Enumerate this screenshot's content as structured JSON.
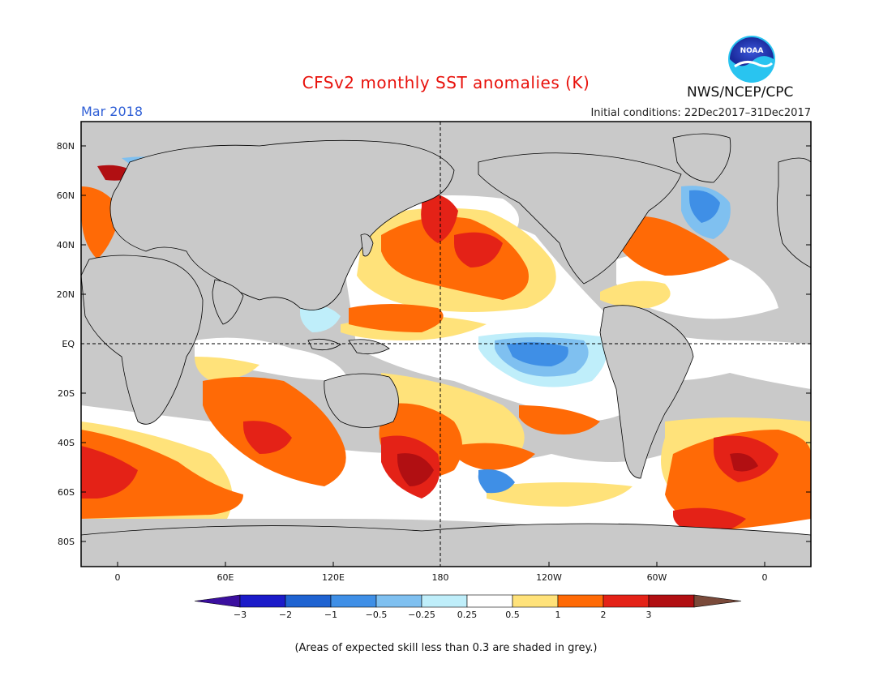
{
  "header": {
    "title": "CFSv2 monthly SST anomalies (K)",
    "month": "Mar 2018",
    "initial_conditions": "Initial conditions: 22Dec2017–31Dec2017",
    "agency": "NWS/NCEP/CPC",
    "logo_text": "NOAA"
  },
  "axes": {
    "lat_labels": [
      "80N",
      "60N",
      "40N",
      "20N",
      "EQ",
      "20S",
      "40S",
      "60S",
      "80S"
    ],
    "lon_labels": [
      "0",
      "60E",
      "120E",
      "180",
      "120W",
      "60W",
      "0"
    ]
  },
  "colorbar": {
    "labels": [
      "−3",
      "−2",
      "−1",
      "−0.5",
      "−0.25",
      "0.25",
      "0.5",
      "1",
      "2",
      "3"
    ],
    "colors": [
      "#1b1bc9",
      "#1f63d1",
      "#3f8fe6",
      "#7fc0f0",
      "#bfeefa",
      "#ffffff",
      "#ffe27a",
      "#ff6a06",
      "#e42217",
      "#b10f12"
    ],
    "under_color": "#3b0f9f",
    "over_color": "#7a4a3a"
  },
  "legend": {
    "note": "(Areas of expected skill less than 0.3 are shaded in grey.)"
  },
  "map": {
    "land_color": "#c9c9c9",
    "ocean_colors": {
      "grey": "#c9c9c9",
      "white": "#ffffff",
      "light_yellow": "#ffe27a",
      "orange": "#ff6a06",
      "red": "#e42217",
      "dark_red": "#b10f12",
      "light_blue": "#bfeefa",
      "mid_blue": "#7fc0f0",
      "blue": "#3f8fe6"
    }
  }
}
